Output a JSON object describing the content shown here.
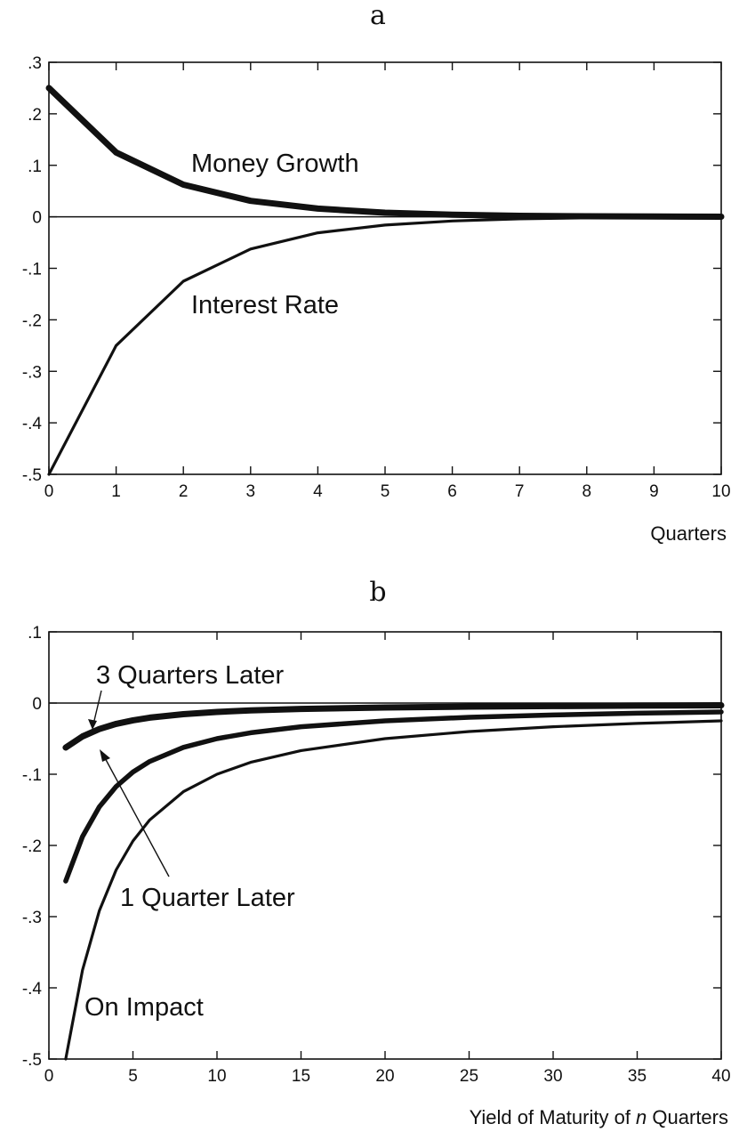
{
  "chart_data": [
    {
      "type": "line",
      "title": "a",
      "xlabel": "Quarters",
      "ylabel": "",
      "xlim": [
        0,
        10
      ],
      "ylim": [
        -0.5,
        0.3
      ],
      "x_ticks": [
        0,
        1,
        2,
        3,
        4,
        5,
        6,
        7,
        8,
        9,
        10
      ],
      "x_tick_labels": [
        "0",
        "1",
        "2",
        "3",
        "4",
        "5",
        "6",
        "7",
        "8",
        "9",
        "10"
      ],
      "y_ticks": [
        0.3,
        0.2,
        0.1,
        0,
        -0.1,
        -0.2,
        -0.3,
        -0.4,
        -0.5
      ],
      "y_tick_labels": [
        ".3",
        ".2",
        ".1",
        "0",
        "-.1",
        "-.2",
        "-.3",
        "-.4",
        "-.5"
      ],
      "grid": false,
      "zero_line": true,
      "series": [
        {
          "name": "Money Growth",
          "x": [
            0,
            1,
            2,
            3,
            4,
            5,
            6,
            7,
            8,
            9,
            10
          ],
          "y": [
            0.25,
            0.125,
            0.0625,
            0.031,
            0.016,
            0.008,
            0.004,
            0.002,
            0.001,
            0.0005,
            0.0002
          ]
        },
        {
          "name": "Interest Rate",
          "x": [
            0,
            1,
            2,
            3,
            4,
            5,
            6,
            7,
            8,
            9,
            10
          ],
          "y": [
            -0.5,
            -0.25,
            -0.125,
            -0.0625,
            -0.031,
            -0.016,
            -0.008,
            -0.004,
            -0.002,
            -0.001,
            -0.0005
          ]
        }
      ]
    },
    {
      "type": "line",
      "title": "b",
      "xlabel_prefix": "Yield of Maturity of ",
      "xlabel_var": "n",
      "xlabel_suffix": " Quarters",
      "ylabel": "",
      "xlim": [
        0,
        40
      ],
      "ylim": [
        -0.5,
        0.1
      ],
      "x_ticks": [
        0,
        5,
        10,
        15,
        20,
        25,
        30,
        35,
        40
      ],
      "x_tick_labels": [
        "0",
        "5",
        "10",
        "15",
        "20",
        "25",
        "30",
        "35",
        "40"
      ],
      "y_ticks": [
        0.1,
        0,
        -0.1,
        -0.2,
        -0.3,
        -0.4,
        -0.5
      ],
      "y_tick_labels": [
        ".1",
        "0",
        "-.1",
        "-.2",
        "-.3",
        "-.4",
        "-.5"
      ],
      "grid": false,
      "zero_line": true,
      "series": [
        {
          "name": "3 Quarters Later",
          "x": [
            1,
            2,
            3,
            4,
            5,
            6,
            8,
            10,
            12,
            15,
            20,
            25,
            30,
            35,
            40
          ],
          "y": [
            -0.0625,
            -0.0469,
            -0.0365,
            -0.0293,
            -0.0242,
            -0.0205,
            -0.0156,
            -0.0125,
            -0.0104,
            -0.0083,
            -0.0063,
            -0.005,
            -0.0042,
            -0.0036,
            -0.0031
          ]
        },
        {
          "name": "1 Quarter Later",
          "x": [
            1,
            2,
            3,
            4,
            5,
            6,
            8,
            10,
            12,
            15,
            20,
            25,
            30,
            35,
            40
          ],
          "y": [
            -0.25,
            -0.1875,
            -0.1458,
            -0.1172,
            -0.0969,
            -0.082,
            -0.0623,
            -0.05,
            -0.0417,
            -0.0333,
            -0.025,
            -0.02,
            -0.0167,
            -0.0143,
            -0.0125
          ]
        },
        {
          "name": "On Impact",
          "x": [
            1,
            2,
            3,
            4,
            5,
            6,
            8,
            10,
            12,
            15,
            20,
            25,
            30,
            35,
            40
          ],
          "y": [
            -0.5,
            -0.375,
            -0.2917,
            -0.2344,
            -0.1938,
            -0.1641,
            -0.1245,
            -0.1,
            -0.0833,
            -0.0667,
            -0.05,
            -0.04,
            -0.0333,
            -0.0286,
            -0.025
          ]
        }
      ]
    }
  ]
}
